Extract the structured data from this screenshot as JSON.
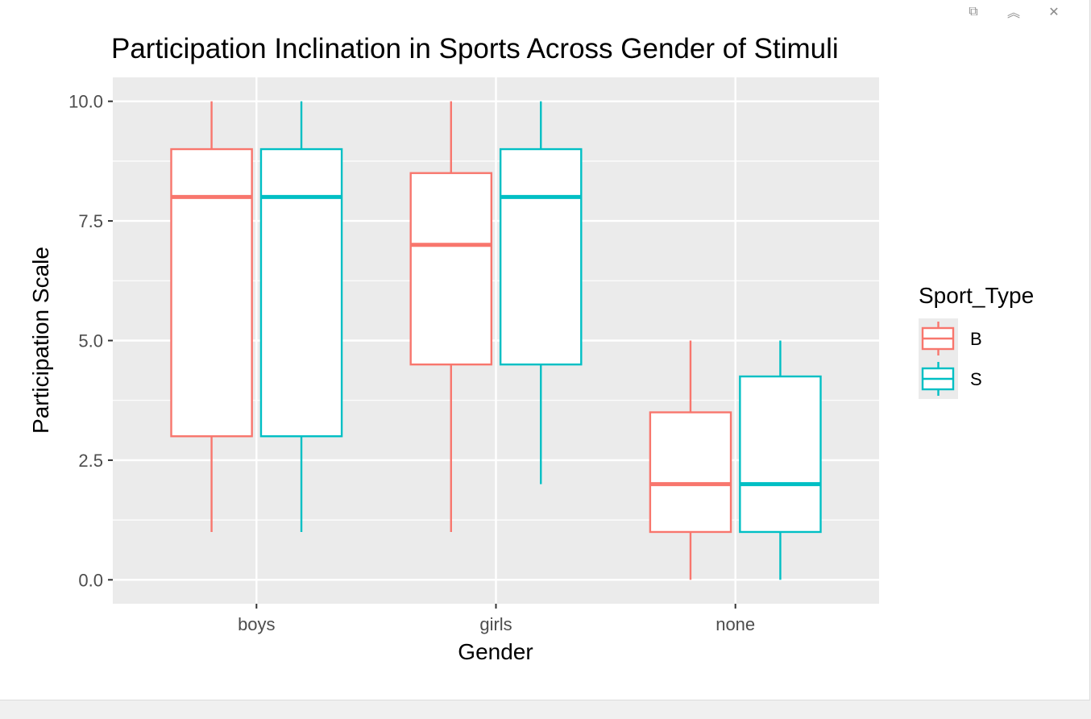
{
  "window": {
    "controls": [
      {
        "name": "popout-icon",
        "glyph": "⧉"
      },
      {
        "name": "collapse-icon",
        "glyph": "︽"
      },
      {
        "name": "close-icon",
        "glyph": "✕"
      }
    ]
  },
  "chart_data": {
    "type": "boxplot",
    "title": "Participation Inclination in Sports Across Gender of Stimuli",
    "xlabel": "Gender",
    "ylabel": "Participation Scale",
    "categories": [
      "boys",
      "girls",
      "none"
    ],
    "ylim": [
      -0.5,
      10.5
    ],
    "yticks": [
      0,
      2.5,
      5,
      7.5,
      10
    ],
    "ytick_labels": [
      "0.0",
      "2.5",
      "5.0",
      "7.5",
      "10.0"
    ],
    "grid": true,
    "legend": {
      "title": "Sport_Type",
      "position": "right"
    },
    "series": [
      {
        "name": "B",
        "color": "#F8766D",
        "boxes": [
          {
            "category": "boys",
            "min": 1,
            "q1": 3,
            "median": 8,
            "q3": 9,
            "max": 10
          },
          {
            "category": "girls",
            "min": 1,
            "q1": 4.5,
            "median": 7,
            "q3": 8.5,
            "max": 10
          },
          {
            "category": "none",
            "min": 0,
            "q1": 1,
            "median": 2,
            "q3": 3.5,
            "max": 5
          }
        ]
      },
      {
        "name": "S",
        "color": "#00BFC4",
        "boxes": [
          {
            "category": "boys",
            "min": 1,
            "q1": 3,
            "median": 8,
            "q3": 9,
            "max": 10
          },
          {
            "category": "girls",
            "min": 2,
            "q1": 4.5,
            "median": 8,
            "q3": 9,
            "max": 10
          },
          {
            "category": "none",
            "min": 0,
            "q1": 1,
            "median": 2,
            "q3": 4.25,
            "max": 5
          }
        ]
      }
    ]
  },
  "colors": {
    "panel_bg": "#EBEBEB",
    "grid": "#FFFFFF",
    "tick_text": "#4D4D4D",
    "text": "#000000"
  }
}
